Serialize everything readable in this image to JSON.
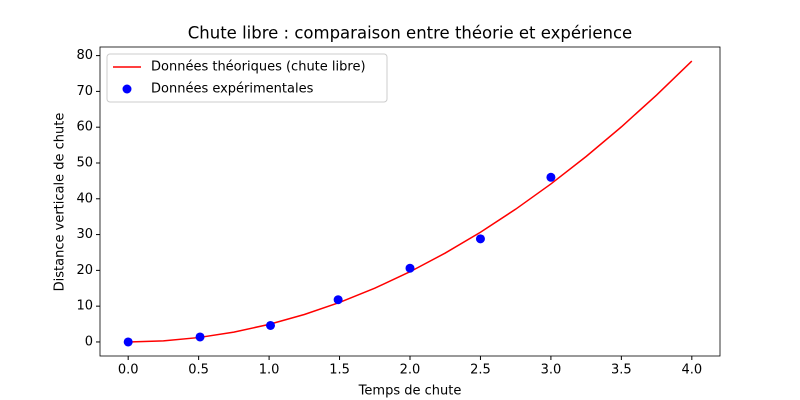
{
  "chart_data": {
    "type": "line-scatter",
    "title": "Chute libre : comparaison entre théorie et expérience",
    "x_label": "Temps de chute",
    "y_label": "Distance verticale de chute",
    "xlim": [
      -0.2,
      4.2
    ],
    "ylim": [
      -3.924,
      82.404
    ],
    "xticks": [
      {
        "value": 0,
        "label": "0.0"
      },
      {
        "value": 0.5,
        "label": "0.5"
      },
      {
        "value": 1,
        "label": "1.0"
      },
      {
        "value": 1.5,
        "label": "1.5"
      },
      {
        "value": 2,
        "label": "2.0"
      },
      {
        "value": 2.5,
        "label": "2.5"
      },
      {
        "value": 3,
        "label": "3.0"
      },
      {
        "value": 3.5,
        "label": "3.5"
      },
      {
        "value": 4,
        "label": "4.0"
      }
    ],
    "yticks": [
      0,
      10,
      20,
      30,
      40,
      50,
      60,
      70,
      80
    ],
    "legend": "upper left",
    "series": [
      {
        "name": "Données théoriques (chute libre)",
        "kind": "line",
        "color": "#ff0000",
        "x": [
          0,
          0.25,
          0.5,
          0.75,
          1,
          1.25,
          1.5,
          1.75,
          2,
          2.25,
          2.5,
          2.75,
          3,
          3.25,
          3.5,
          3.75,
          4
        ],
        "values": [
          0,
          0.3066,
          1.2263,
          2.7591,
          4.905,
          7.6641,
          11.036,
          15.0216,
          19.62,
          24.8316,
          30.6563,
          37.0941,
          44.145,
          51.8091,
          60.0863,
          68.9766,
          78.48
        ]
      },
      {
        "name": "Données expérimentales",
        "kind": "scatter",
        "color": "#0000ff",
        "x": [
          0,
          0.51,
          1.01,
          1.49,
          2.0,
          2.5,
          3.0
        ],
        "values": [
          0,
          1.4,
          4.6,
          11.8,
          20.6,
          28.8,
          46.0
        ]
      }
    ]
  }
}
